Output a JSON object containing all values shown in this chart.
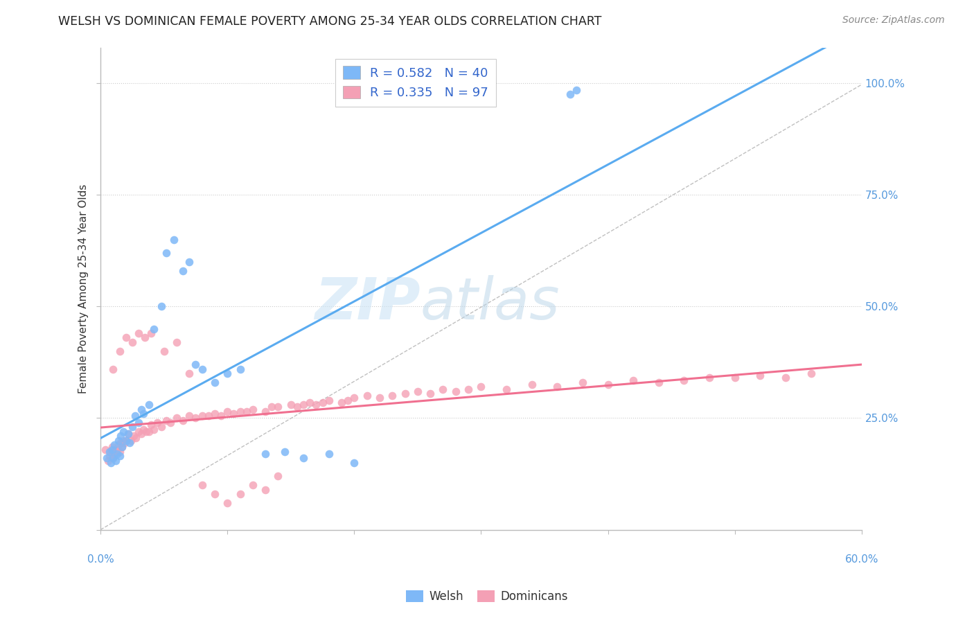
{
  "title": "WELSH VS DOMINICAN FEMALE POVERTY AMONG 25-34 YEAR OLDS CORRELATION CHART",
  "source": "Source: ZipAtlas.com",
  "ylabel": "Female Poverty Among 25-34 Year Olds",
  "xlim": [
    0.0,
    0.6
  ],
  "ylim": [
    0.0,
    1.08
  ],
  "welsh_R": 0.582,
  "welsh_N": 40,
  "dominican_R": 0.335,
  "dominican_N": 97,
  "welsh_color": "#7eb8f7",
  "dominican_color": "#f4a0b5",
  "welsh_line_color": "#5aabf0",
  "dominican_line_color": "#f07090",
  "welsh_x": [
    0.005,
    0.007,
    0.008,
    0.009,
    0.01,
    0.011,
    0.012,
    0.013,
    0.014,
    0.015,
    0.016,
    0.017,
    0.018,
    0.02,
    0.022,
    0.023,
    0.025,
    0.027,
    0.03,
    0.032,
    0.034,
    0.038,
    0.042,
    0.048,
    0.052,
    0.058,
    0.065,
    0.07,
    0.075,
    0.08,
    0.09,
    0.1,
    0.11,
    0.13,
    0.145,
    0.16,
    0.18,
    0.2,
    0.37,
    0.375
  ],
  "welsh_y": [
    0.16,
    0.175,
    0.15,
    0.18,
    0.16,
    0.19,
    0.155,
    0.17,
    0.2,
    0.165,
    0.21,
    0.185,
    0.22,
    0.2,
    0.215,
    0.195,
    0.23,
    0.255,
    0.24,
    0.27,
    0.26,
    0.28,
    0.45,
    0.5,
    0.62,
    0.65,
    0.58,
    0.6,
    0.37,
    0.36,
    0.33,
    0.35,
    0.36,
    0.17,
    0.175,
    0.16,
    0.17,
    0.15,
    0.975,
    0.985
  ],
  "dominican_x": [
    0.004,
    0.006,
    0.007,
    0.008,
    0.009,
    0.01,
    0.011,
    0.012,
    0.013,
    0.014,
    0.015,
    0.016,
    0.017,
    0.018,
    0.019,
    0.02,
    0.022,
    0.024,
    0.026,
    0.028,
    0.03,
    0.032,
    0.034,
    0.036,
    0.038,
    0.04,
    0.042,
    0.045,
    0.048,
    0.052,
    0.055,
    0.06,
    0.065,
    0.07,
    0.075,
    0.08,
    0.085,
    0.09,
    0.095,
    0.1,
    0.105,
    0.11,
    0.115,
    0.12,
    0.13,
    0.135,
    0.14,
    0.15,
    0.155,
    0.16,
    0.165,
    0.17,
    0.175,
    0.18,
    0.19,
    0.195,
    0.2,
    0.21,
    0.22,
    0.23,
    0.24,
    0.25,
    0.26,
    0.27,
    0.28,
    0.29,
    0.3,
    0.32,
    0.34,
    0.36,
    0.38,
    0.4,
    0.42,
    0.44,
    0.46,
    0.48,
    0.5,
    0.52,
    0.54,
    0.56,
    0.01,
    0.015,
    0.02,
    0.025,
    0.03,
    0.035,
    0.04,
    0.05,
    0.06,
    0.07,
    0.08,
    0.09,
    0.1,
    0.11,
    0.12,
    0.13,
    0.14
  ],
  "dominican_y": [
    0.18,
    0.155,
    0.165,
    0.175,
    0.185,
    0.16,
    0.17,
    0.18,
    0.175,
    0.19,
    0.175,
    0.195,
    0.185,
    0.2,
    0.195,
    0.2,
    0.215,
    0.2,
    0.21,
    0.205,
    0.22,
    0.215,
    0.225,
    0.22,
    0.22,
    0.235,
    0.225,
    0.24,
    0.23,
    0.245,
    0.24,
    0.25,
    0.245,
    0.255,
    0.25,
    0.255,
    0.255,
    0.26,
    0.255,
    0.265,
    0.26,
    0.265,
    0.265,
    0.27,
    0.265,
    0.275,
    0.275,
    0.28,
    0.275,
    0.28,
    0.285,
    0.28,
    0.285,
    0.29,
    0.285,
    0.29,
    0.295,
    0.3,
    0.295,
    0.3,
    0.305,
    0.31,
    0.305,
    0.315,
    0.31,
    0.315,
    0.32,
    0.315,
    0.325,
    0.32,
    0.33,
    0.325,
    0.335,
    0.33,
    0.335,
    0.34,
    0.34,
    0.345,
    0.34,
    0.35,
    0.36,
    0.4,
    0.43,
    0.42,
    0.44,
    0.43,
    0.44,
    0.4,
    0.42,
    0.35,
    0.1,
    0.08,
    0.06,
    0.08,
    0.1,
    0.09,
    0.12
  ]
}
